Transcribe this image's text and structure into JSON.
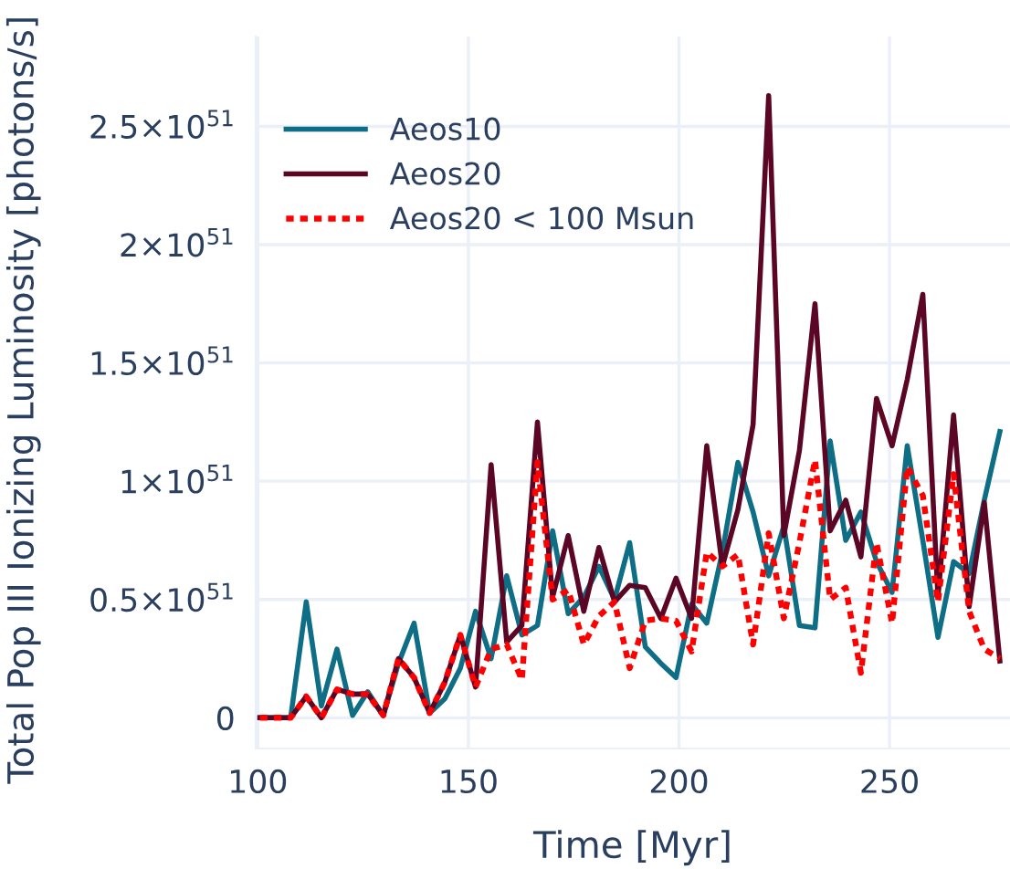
{
  "chart_data": {
    "type": "line",
    "xlabel": "Time [Myr]",
    "ylabel": "Total Pop III Ionizing Luminosity [photons/s]",
    "x": [
      100.5,
      104.2,
      107.8,
      111.5,
      115.1,
      118.8,
      122.5,
      126.1,
      129.8,
      133.4,
      137.1,
      140.8,
      144.4,
      148.1,
      151.7,
      155.4,
      159.1,
      162.7,
      166.4,
      170.0,
      173.7,
      177.4,
      181.0,
      184.7,
      188.3,
      192.0,
      195.7,
      199.3,
      203.0,
      206.6,
      210.3,
      214.0,
      217.6,
      221.3,
      224.9,
      228.6,
      232.3,
      235.9,
      239.6,
      243.2,
      246.9,
      250.6,
      254.2,
      257.9,
      261.5,
      265.2,
      268.9,
      272.5,
      276.2
    ],
    "series": [
      {
        "name": "Aeos10",
        "color": "#0e6e85",
        "line_style": "solid",
        "values": [
          0,
          0,
          0,
          4.9e+50,
          5e+49,
          2.9e+50,
          1e+49,
          1.1e+50,
          1e+49,
          2.3e+50,
          4e+50,
          2e+49,
          8e+49,
          2.1e+50,
          4.5e+50,
          2.5e+50,
          6e+50,
          3.5e+50,
          3.9e+50,
          7.9e+50,
          4.4e+50,
          5.1e+50,
          6.4e+50,
          5e+50,
          7.4e+50,
          3e+50,
          2.3e+50,
          1.7e+50,
          4.8e+50,
          4e+50,
          7e+50,
          1.08e+51,
          8.7e+50,
          6e+50,
          8.1e+50,
          3.9e+50,
          3.8e+50,
          1.17e+51,
          7.5e+50,
          8.7e+50,
          6.6e+50,
          5.3e+50,
          1.15e+51,
          7.5e+50,
          3.4e+50,
          6.6e+50,
          6.1e+50,
          9.2e+50,
          1.21e+51
        ]
      },
      {
        "name": "Aeos20",
        "color": "#5c0626",
        "line_style": "solid",
        "values": [
          0,
          0,
          0,
          9e+49,
          0,
          1.2e+50,
          1e+50,
          1e+50,
          1e+49,
          2.5e+50,
          1.7e+50,
          2e+49,
          1.5e+50,
          3.5e+50,
          1.3e+50,
          1.07e+51,
          3.2e+50,
          3.9e+50,
          1.25e+51,
          5.1e+50,
          7.7e+50,
          4.5e+50,
          7.2e+50,
          4.9e+50,
          5.6e+50,
          5.5e+50,
          4.2e+50,
          5.9e+50,
          4.2e+50,
          1.15e+51,
          6.4e+50,
          8.8e+50,
          1.24e+51,
          2.63e+51,
          7.7e+50,
          1.13e+51,
          1.75e+51,
          7.9e+50,
          9.2e+50,
          6.8e+50,
          1.35e+51,
          1.15e+51,
          1.43e+51,
          1.79e+51,
          5.1e+50,
          1.28e+51,
          4.7e+50,
          9.1e+50,
          2.4e+50
        ]
      },
      {
        "name": "Aeos20 < 100 Msun",
        "color": "#ff0000",
        "line_style": "dotted",
        "values": [
          0,
          0,
          0,
          9e+49,
          0,
          1.2e+50,
          1e+50,
          1e+50,
          1e+49,
          2.5e+50,
          1.7e+50,
          2e+49,
          1.5e+50,
          3.5e+50,
          1.3e+50,
          2.9e+50,
          3.1e+50,
          1.6e+50,
          1.08e+51,
          5e+50,
          5.4e+50,
          3.1e+50,
          4.3e+50,
          4.9e+50,
          2.1e+50,
          4.1e+50,
          4.2e+50,
          4.1e+50,
          2.8e+50,
          7e+50,
          6.4e+50,
          6.9e+50,
          3.1e+50,
          7.8e+50,
          4.2e+50,
          7.4e+50,
          1.09e+51,
          5e+50,
          5.5e+50,
          1.9e+50,
          7.4e+50,
          4e+50,
          1.06e+51,
          9.4e+50,
          4.9e+50,
          1.03e+51,
          4.5e+50,
          2.9e+50,
          2.5e+50
        ]
      }
    ],
    "xlim": [
      99.5,
      278.6
    ],
    "xticks": [
      100,
      150,
      200,
      250
    ],
    "ylim": [
      -1.3e+50,
      2.88e+51
    ],
    "yticks": [
      0,
      {
        "value": 5e+50,
        "label": "0.5×10$^{51}$"
      },
      {
        "value": 1e+51,
        "label": "1×10$^{51}$"
      },
      {
        "value": 1.5e+51,
        "label": "1.5×10$^{51}$"
      },
      {
        "value": 2e+51,
        "label": "2×10$^{51}$"
      },
      {
        "value": 2.5e+51,
        "label": "2.5×10$^{51}$"
      }
    ],
    "grid": true,
    "legend": "top left"
  }
}
